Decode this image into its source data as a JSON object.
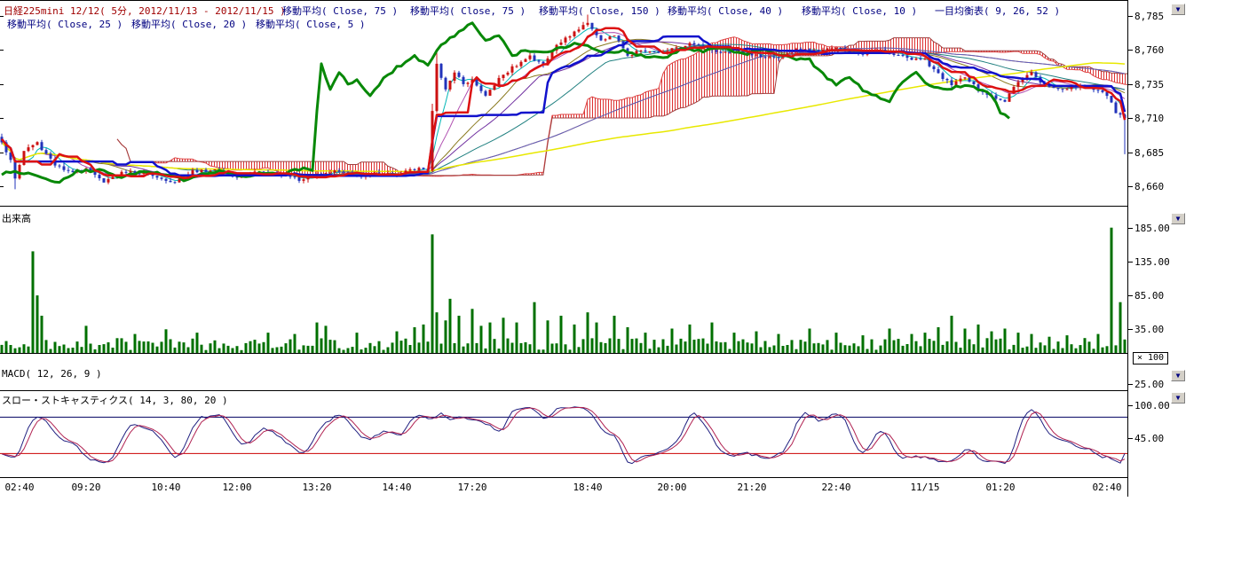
{
  "header": {
    "title": "日経225mini 12/12( 5分, 2012/11/13 - 2012/11/15 )",
    "title_color": "#a00000",
    "label_color": "#000080",
    "row1": [
      "移動平均( Close, 75 )",
      "移動平均( Close, 75 )",
      "移動平均( Close, 150 )",
      "移動平均( Close, 40 )",
      "移動平均( Close, 10 )",
      "一目均衡表( 9, 26, 52 )"
    ],
    "row2": [
      "移動平均( Close, 25 )",
      "移動平均( Close, 20 )",
      "移動平均( Close, 5 )"
    ]
  },
  "icons": {
    "scroll_down": "▼"
  },
  "chart_data": [
    {
      "type": "candlestick",
      "title": "日経225mini 12/12( 5分, 2012/11/13 - 2012/11/15 )",
      "instrument": "日経225mini 12/12",
      "interval": "5分",
      "date_range": "2012/11/13 - 2012/11/15",
      "bar_count": 254,
      "ylim": [
        8646,
        8796
      ],
      "yticks": [
        {
          "value": 8785,
          "label": "8,785"
        },
        {
          "value": 8760,
          "label": "8,760"
        },
        {
          "value": 8735,
          "label": "8,735"
        },
        {
          "value": 8710,
          "label": "8,710"
        },
        {
          "value": 8685,
          "label": "8,685"
        },
        {
          "value": 8660,
          "label": "8,660"
        }
      ],
      "xticks": [
        {
          "i": 4,
          "label": "02:40"
        },
        {
          "i": 19,
          "label": "09:20"
        },
        {
          "i": 37,
          "label": "10:40"
        },
        {
          "i": 53,
          "label": "12:00"
        },
        {
          "i": 71,
          "label": "13:20"
        },
        {
          "i": 89,
          "label": "14:40"
        },
        {
          "i": 106,
          "label": "17:20"
        },
        {
          "i": 132,
          "label": "18:40"
        },
        {
          "i": 151,
          "label": "20:00"
        },
        {
          "i": 169,
          "label": "21:20"
        },
        {
          "i": 188,
          "label": "22:40"
        },
        {
          "i": 208,
          "label": "11/15"
        },
        {
          "i": 225,
          "label": "01:20"
        },
        {
          "i": 249,
          "label": "02:40"
        }
      ],
      "up_color": "#cc1111",
      "down_color": "#2233bb",
      "close_anchors": [
        [
          0,
          8692
        ],
        [
          2,
          8680
        ],
        [
          3,
          8666
        ],
        [
          5,
          8685
        ],
        [
          8,
          8690
        ],
        [
          12,
          8675
        ],
        [
          16,
          8671
        ],
        [
          19,
          8676
        ],
        [
          23,
          8667
        ],
        [
          27,
          8673
        ],
        [
          31,
          8670
        ],
        [
          35,
          8666
        ],
        [
          39,
          8661
        ],
        [
          43,
          8671
        ],
        [
          48,
          8674
        ],
        [
          53,
          8670
        ],
        [
          58,
          8673
        ],
        [
          63,
          8668
        ],
        [
          67,
          8663
        ],
        [
          71,
          8669
        ],
        [
          76,
          8673
        ],
        [
          81,
          8670
        ],
        [
          85,
          8673
        ],
        [
          89,
          8670
        ],
        [
          93,
          8672
        ],
        [
          96,
          8671
        ],
        [
          97,
          8714
        ],
        [
          98,
          8748
        ],
        [
          100,
          8730
        ],
        [
          102,
          8744
        ],
        [
          104,
          8736
        ],
        [
          106,
          8739
        ],
        [
          109,
          8728
        ],
        [
          112,
          8742
        ],
        [
          115,
          8750
        ],
        [
          119,
          8756
        ],
        [
          122,
          8748
        ],
        [
          125,
          8762
        ],
        [
          129,
          8772
        ],
        [
          132,
          8780
        ],
        [
          135,
          8768
        ],
        [
          138,
          8773
        ],
        [
          141,
          8758
        ],
        [
          144,
          8763
        ],
        [
          148,
          8759
        ],
        [
          151,
          8761
        ],
        [
          156,
          8763
        ],
        [
          161,
          8757
        ],
        [
          166,
          8761
        ],
        [
          170,
          8759
        ],
        [
          175,
          8756
        ],
        [
          180,
          8762
        ],
        [
          184,
          8758
        ],
        [
          188,
          8761
        ],
        [
          193,
          8757
        ],
        [
          198,
          8762
        ],
        [
          203,
          8758
        ],
        [
          208,
          8754
        ],
        [
          211,
          8742
        ],
        [
          214,
          8734
        ],
        [
          217,
          8739
        ],
        [
          220,
          8730
        ],
        [
          223,
          8726
        ],
        [
          226,
          8724
        ],
        [
          229,
          8740
        ],
        [
          232,
          8746
        ],
        [
          235,
          8736
        ],
        [
          239,
          8731
        ],
        [
          243,
          8734
        ],
        [
          246,
          8729
        ],
        [
          249,
          8726
        ],
        [
          251,
          8714
        ],
        [
          253,
          8710
        ]
      ],
      "wick_extra": {
        "3": 6,
        "97": 5,
        "98": 8,
        "132": 4,
        "253": 24
      },
      "overlays": [
        {
          "name": "ma5",
          "type": "sma",
          "period": 5,
          "color": "#00b6b6",
          "width": 1
        },
        {
          "name": "ma10",
          "type": "sma",
          "period": 10,
          "color": "#b04fb0",
          "width": 1
        },
        {
          "name": "ma20",
          "type": "sma",
          "period": 20,
          "color": "#8a7a20",
          "width": 1
        },
        {
          "name": "ma25",
          "type": "sma",
          "period": 25,
          "color": "#7030a0",
          "width": 1
        },
        {
          "name": "ma40",
          "type": "sma",
          "period": 40,
          "color": "#208080",
          "width": 1
        },
        {
          "name": "ma75a",
          "type": "sma",
          "period": 75,
          "color": "#c06020",
          "width": 1
        },
        {
          "name": "ma75b",
          "type": "sma",
          "period": 75,
          "color": "#6060c0",
          "width": 1
        },
        {
          "name": "ma150",
          "type": "sma",
          "period": 150,
          "color": "#e8e800",
          "width": 1.5
        },
        {
          "name": "tenkan",
          "type": "ichimoku_tenkan",
          "period": 9,
          "color": "#dd1111",
          "width": 2.5
        },
        {
          "name": "kijun",
          "type": "ichimoku_kijun",
          "period": 26,
          "color": "#1111cc",
          "width": 2.5
        },
        {
          "name": "chikou",
          "type": "ichimoku_chikou",
          "shift": 26,
          "color": "#088808",
          "width": 3
        },
        {
          "name": "cloud",
          "type": "ichimoku_cloud",
          "shift": 26,
          "senkou_b_period": 52,
          "edge_a_color": "#dd4444",
          "edge_b_color": "#a04040",
          "hatch_color": "#dd3333"
        }
      ]
    },
    {
      "type": "bar",
      "label": "出来高",
      "unit_label": "× 100",
      "ylim": [
        0,
        216
      ],
      "yticks": [
        {
          "value": 185,
          "label": "185.00"
        },
        {
          "value": 135,
          "label": "135.00"
        },
        {
          "value": 85,
          "label": "85.00"
        },
        {
          "value": 35,
          "label": "35.00"
        }
      ],
      "color": "#007000",
      "base_range": [
        4,
        22
      ],
      "spikes": {
        "7": 150,
        "8": 85,
        "9": 55,
        "19": 40,
        "30": 28,
        "37": 35,
        "44": 30,
        "60": 30,
        "66": 28,
        "71": 45,
        "73": 40,
        "80": 30,
        "89": 32,
        "93": 38,
        "95": 42,
        "97": 175,
        "98": 60,
        "100": 48,
        "101": 80,
        "103": 55,
        "106": 65,
        "108": 40,
        "110": 45,
        "113": 52,
        "116": 45,
        "120": 75,
        "123": 48,
        "126": 55,
        "129": 42,
        "132": 60,
        "134": 45,
        "138": 55,
        "141": 38,
        "145": 30,
        "151": 36,
        "155": 42,
        "160": 45,
        "165": 30,
        "170": 32,
        "175": 28,
        "182": 36,
        "188": 30,
        "194": 26,
        "200": 36,
        "205": 28,
        "208": 30,
        "211": 38,
        "214": 55,
        "217": 36,
        "220": 42,
        "223": 32,
        "226": 36,
        "229": 30,
        "232": 28,
        "236": 24,
        "240": 26,
        "244": 22,
        "247": 28,
        "250": 185,
        "252": 75
      }
    },
    {
      "type": "macd",
      "label": "MACD( 12, 26, 9 )",
      "params": [
        12,
        26,
        9
      ],
      "yticks": [
        {
          "value": 25,
          "label": "25.00"
        }
      ]
    },
    {
      "type": "stochastic",
      "label": "スロー・ストキャスティクス( 14, 3, 80, 20 )",
      "params": [
        14,
        3,
        80,
        20
      ],
      "ylim": [
        -19,
        123
      ],
      "yticks": [
        {
          "value": 100,
          "label": "100.00"
        },
        {
          "value": 45,
          "label": "45.00"
        }
      ],
      "levels": [
        {
          "value": 80,
          "color": "#000060"
        },
        {
          "value": 20,
          "color": "#cc0000"
        }
      ],
      "k_color": "#202080",
      "d_color": "#b02050"
    }
  ]
}
